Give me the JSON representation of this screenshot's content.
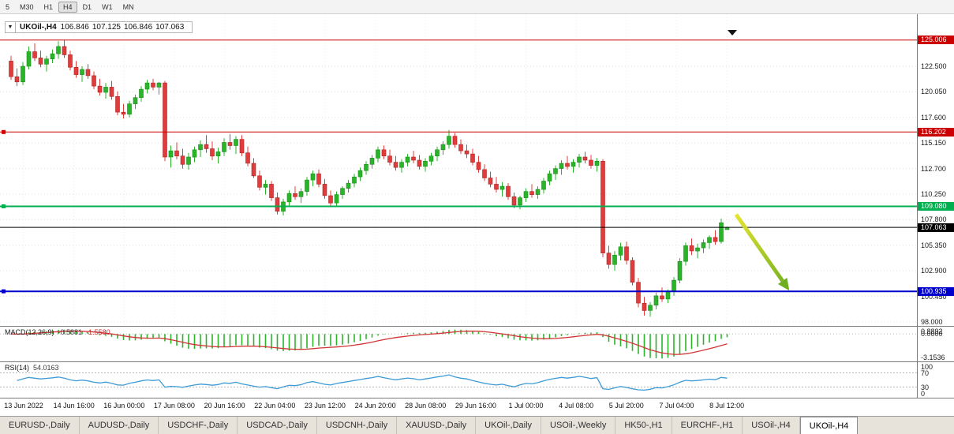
{
  "toolbar": {
    "timeframes": [
      "5",
      "M30",
      "H1",
      "H4",
      "D1",
      "W1",
      "MN"
    ],
    "active_timeframe": "H4"
  },
  "chart_header": {
    "symbol": "UKOil-,H4",
    "open": "106.846",
    "high": "107.125",
    "low": "106.846",
    "close": "107.063"
  },
  "chart_data": {
    "type": "candlestick",
    "title": "UKOil-,H4",
    "price_range": [
      97.62,
      127.49
    ],
    "up_color": "#2ab42a",
    "down_color": "#e03c3c",
    "price_ticks": [
      {
        "price": 122.5,
        "label": "122.500"
      },
      {
        "price": 120.05,
        "label": "120.050"
      },
      {
        "price": 117.6,
        "label": "117.600"
      },
      {
        "price": 115.15,
        "label": "115.150"
      },
      {
        "price": 112.7,
        "label": "112.700"
      },
      {
        "price": 110.25,
        "label": "110.250"
      },
      {
        "price": 107.8,
        "label": "107.800"
      },
      {
        "price": 105.35,
        "label": "105.350"
      },
      {
        "price": 102.9,
        "label": "102.900"
      },
      {
        "price": 100.45,
        "label": "100.450"
      },
      {
        "price": 98.0,
        "label": "98.000"
      }
    ],
    "levels": [
      {
        "price": 125.006,
        "label": "125.006",
        "color": "#cc0000",
        "width": 1,
        "handle": false
      },
      {
        "price": 116.202,
        "label": "116.202",
        "color": "#cc0000",
        "width": 1,
        "handle": true
      },
      {
        "price": 109.08,
        "label": "109.080",
        "color": "#00b050",
        "width": 2,
        "handle": true
      },
      {
        "price": 107.063,
        "label": "107.063",
        "color": "#000000",
        "width": 1,
        "handle": false
      },
      {
        "price": 100.935,
        "label": "100.935",
        "color": "#0000cc",
        "width": 2,
        "handle": true
      }
    ],
    "annotation_arrow": {
      "from_index": 122.5,
      "from_price": 108.3,
      "to_index": 131.5,
      "to_price": 101.0,
      "color_start": "#e6e430",
      "color_end": "#6fae20"
    },
    "time_labels": [
      "13 Jun 2022",
      "14 Jun 16:00",
      "16 Jun 00:00",
      "17 Jun 08:00",
      "20 Jun 16:00",
      "22 Jun 04:00",
      "23 Jun 12:00",
      "24 Jun 20:00",
      "28 Jun 08:00",
      "29 Jun 16:00",
      "1 Jul 00:00",
      "4 Jul 08:00",
      "5 Jul 20:00",
      "7 Jul 04:00",
      "8 Jul 12:00"
    ],
    "candles": [
      [
        123.0,
        123.5,
        121.2,
        121.5
      ],
      [
        121.5,
        122.3,
        120.6,
        121.0
      ],
      [
        121.0,
        122.9,
        120.7,
        122.5
      ],
      [
        122.5,
        124.4,
        122.2,
        123.9
      ],
      [
        123.9,
        124.7,
        123.0,
        123.3
      ],
      [
        123.3,
        124.0,
        122.4,
        122.7
      ],
      [
        122.7,
        123.5,
        122.0,
        123.2
      ],
      [
        123.2,
        124.1,
        122.8,
        123.7
      ],
      [
        123.7,
        124.9,
        123.2,
        124.4
      ],
      [
        124.4,
        125.0,
        123.3,
        123.6
      ],
      [
        123.6,
        124.0,
        122.1,
        122.4
      ],
      [
        122.4,
        123.0,
        121.4,
        121.7
      ],
      [
        121.7,
        122.5,
        121.0,
        122.2
      ],
      [
        122.2,
        122.7,
        121.3,
        121.6
      ],
      [
        121.6,
        122.0,
        120.3,
        120.6
      ],
      [
        120.6,
        121.3,
        119.7,
        120.0
      ],
      [
        120.0,
        120.9,
        119.4,
        120.5
      ],
      [
        120.5,
        121.1,
        119.3,
        119.6
      ],
      [
        119.6,
        120.1,
        117.8,
        118.1
      ],
      [
        118.1,
        118.9,
        117.5,
        117.9
      ],
      [
        117.9,
        119.2,
        117.6,
        118.9
      ],
      [
        118.9,
        119.8,
        118.4,
        119.5
      ],
      [
        119.5,
        120.6,
        119.1,
        120.3
      ],
      [
        120.3,
        121.2,
        119.9,
        120.9
      ],
      [
        120.9,
        121.3,
        120.2,
        120.5
      ],
      [
        120.5,
        121.0,
        119.8,
        120.9
      ],
      [
        120.9,
        121.1,
        113.4,
        113.8
      ],
      [
        113.8,
        114.9,
        112.8,
        114.4
      ],
      [
        114.4,
        115.2,
        113.6,
        113.9
      ],
      [
        113.9,
        114.6,
        112.7,
        113.1
      ],
      [
        113.1,
        114.2,
        112.6,
        113.8
      ],
      [
        113.8,
        114.8,
        113.3,
        114.5
      ],
      [
        114.5,
        115.4,
        113.8,
        115.0
      ],
      [
        115.0,
        115.9,
        114.2,
        114.6
      ],
      [
        114.6,
        115.3,
        113.5,
        113.9
      ],
      [
        113.9,
        114.7,
        113.2,
        114.3
      ],
      [
        114.3,
        115.6,
        113.9,
        115.2
      ],
      [
        115.2,
        116.0,
        114.5,
        114.9
      ],
      [
        114.9,
        115.8,
        114.1,
        115.5
      ],
      [
        115.5,
        115.9,
        113.9,
        114.2
      ],
      [
        114.2,
        114.8,
        112.9,
        113.2
      ],
      [
        113.2,
        113.7,
        111.8,
        112.0
      ],
      [
        112.0,
        112.5,
        110.6,
        110.9
      ],
      [
        110.9,
        111.6,
        110.2,
        111.2
      ],
      [
        111.2,
        111.5,
        109.6,
        109.9
      ],
      [
        109.9,
        110.4,
        108.3,
        108.6
      ],
      [
        108.6,
        109.8,
        108.2,
        109.5
      ],
      [
        109.5,
        110.6,
        109.1,
        110.3
      ],
      [
        110.3,
        111.0,
        109.7,
        110.0
      ],
      [
        110.0,
        110.8,
        109.4,
        110.5
      ],
      [
        110.5,
        111.9,
        110.1,
        111.6
      ],
      [
        111.6,
        112.5,
        111.0,
        112.2
      ],
      [
        112.2,
        112.6,
        110.9,
        111.2
      ],
      [
        111.2,
        111.7,
        109.8,
        110.1
      ],
      [
        110.1,
        110.6,
        109.0,
        109.4
      ],
      [
        109.4,
        110.5,
        109.1,
        110.2
      ],
      [
        110.2,
        111.0,
        109.8,
        110.8
      ],
      [
        110.8,
        111.6,
        110.4,
        111.3
      ],
      [
        111.3,
        112.2,
        110.9,
        111.9
      ],
      [
        111.9,
        112.8,
        111.5,
        112.5
      ],
      [
        112.5,
        113.4,
        112.1,
        113.1
      ],
      [
        113.1,
        114.0,
        112.7,
        113.7
      ],
      [
        113.7,
        114.8,
        113.3,
        114.5
      ],
      [
        114.5,
        114.9,
        113.6,
        113.9
      ],
      [
        113.9,
        114.5,
        113.0,
        113.3
      ],
      [
        113.3,
        113.9,
        112.5,
        112.8
      ],
      [
        112.8,
        113.6,
        112.3,
        113.3
      ],
      [
        113.3,
        114.1,
        112.9,
        113.8
      ],
      [
        113.8,
        114.4,
        113.2,
        113.5
      ],
      [
        113.5,
        114.0,
        112.6,
        112.9
      ],
      [
        112.9,
        113.7,
        112.4,
        113.4
      ],
      [
        113.4,
        114.2,
        113.0,
        113.9
      ],
      [
        113.9,
        114.8,
        113.4,
        114.5
      ],
      [
        114.5,
        115.3,
        114.0,
        115.0
      ],
      [
        115.0,
        116.4,
        114.6,
        115.8
      ],
      [
        115.8,
        116.1,
        114.7,
        115.0
      ],
      [
        115.0,
        115.5,
        114.1,
        114.4
      ],
      [
        114.4,
        115.0,
        113.7,
        114.1
      ],
      [
        114.1,
        114.6,
        113.0,
        113.3
      ],
      [
        113.3,
        113.9,
        112.3,
        112.6
      ],
      [
        112.6,
        113.1,
        111.5,
        111.8
      ],
      [
        111.8,
        112.4,
        110.9,
        111.2
      ],
      [
        111.2,
        111.9,
        110.4,
        110.7
      ],
      [
        110.7,
        111.4,
        110.0,
        111.0
      ],
      [
        111.0,
        111.3,
        109.7,
        110.0
      ],
      [
        110.0,
        110.4,
        108.9,
        109.2
      ],
      [
        109.2,
        110.1,
        108.8,
        109.9
      ],
      [
        109.9,
        110.8,
        109.5,
        110.5
      ],
      [
        110.5,
        111.2,
        109.9,
        110.2
      ],
      [
        110.2,
        111.0,
        109.8,
        110.7
      ],
      [
        110.7,
        111.8,
        110.3,
        111.5
      ],
      [
        111.5,
        112.5,
        111.1,
        112.2
      ],
      [
        112.2,
        113.0,
        111.6,
        112.7
      ],
      [
        112.7,
        113.5,
        112.1,
        113.2
      ],
      [
        113.2,
        113.9,
        112.6,
        112.9
      ],
      [
        112.9,
        113.6,
        112.3,
        113.3
      ],
      [
        113.3,
        114.1,
        112.8,
        113.8
      ],
      [
        113.8,
        114.3,
        113.2,
        113.5
      ],
      [
        113.5,
        114.0,
        112.7,
        113.0
      ],
      [
        113.0,
        113.7,
        112.4,
        113.4
      ],
      [
        113.4,
        113.6,
        104.2,
        104.6
      ],
      [
        104.6,
        105.3,
        103.1,
        103.5
      ],
      [
        103.5,
        104.8,
        102.9,
        104.4
      ],
      [
        104.4,
        105.6,
        103.9,
        105.2
      ],
      [
        105.2,
        105.7,
        103.5,
        103.9
      ],
      [
        103.9,
        104.2,
        101.5,
        101.8
      ],
      [
        101.8,
        102.2,
        99.4,
        99.8
      ],
      [
        99.8,
        100.4,
        98.6,
        99.1
      ],
      [
        99.1,
        99.9,
        98.5,
        99.6
      ],
      [
        99.6,
        100.8,
        99.2,
        100.5
      ],
      [
        100.5,
        101.3,
        99.9,
        100.2
      ],
      [
        100.2,
        101.1,
        99.8,
        100.9
      ],
      [
        100.9,
        102.3,
        100.5,
        102.0
      ],
      [
        102.0,
        104.1,
        101.7,
        103.8
      ],
      [
        103.8,
        105.6,
        103.4,
        105.3
      ],
      [
        105.3,
        106.0,
        104.4,
        104.8
      ],
      [
        104.8,
        105.5,
        104.1,
        105.1
      ],
      [
        105.1,
        105.9,
        104.6,
        105.6
      ],
      [
        105.6,
        106.3,
        105.0,
        106.1
      ],
      [
        106.1,
        106.8,
        105.4,
        105.7
      ],
      [
        105.7,
        107.9,
        105.5,
        107.5
      ],
      [
        106.846,
        107.125,
        106.846,
        107.063
      ]
    ]
  },
  "indicators": {
    "macd": {
      "name": "MACD(12,26,9)",
      "value_main": "-0.5881",
      "value_signal": "-1.5580",
      "scale": [
        "0.8892",
        "0.0000",
        "-3.1536"
      ],
      "histogram_color": "#2ab42a",
      "signal_color": "#d23434"
    },
    "rsi": {
      "name": "RSI(14)",
      "value": "54.0163",
      "scale": [
        "100",
        "70",
        "30",
        "0"
      ],
      "levels": [
        70,
        30
      ],
      "line_color": "#3d9bd6"
    }
  },
  "tabs": {
    "items": [
      "EURUSD-,Daily",
      "AUDUSD-,Daily",
      "USDCHF-,Daily",
      "USDCAD-,Daily",
      "USDCNH-,Daily",
      "XAUUSD-,Daily",
      "UKOil-,Daily",
      "USOil-,Weekly",
      "HK50-,H1",
      "EURCHF-,H1",
      "USOil-,H4",
      "UKOil-,H4"
    ],
    "active": "UKOil-,H4"
  }
}
